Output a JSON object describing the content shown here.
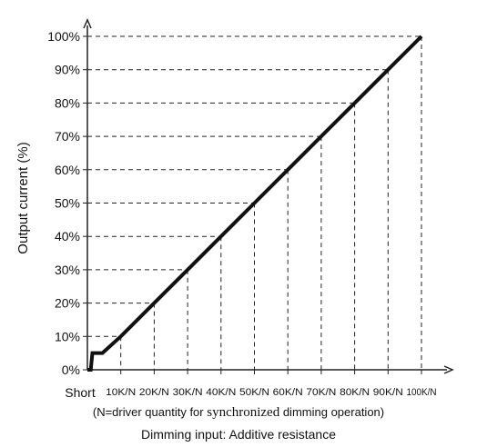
{
  "chart_data": {
    "type": "line",
    "ylabel": "Output current (%)",
    "xlabel": "Dimming input: Additive resistance",
    "note_before": "(N=driver quantity for ",
    "note_highlight": "synchronized",
    "note_after": " dimming operation)",
    "x_start_label": "Short",
    "categories": [
      "Short",
      "10K/N",
      "20K/N",
      "30K/N",
      "40K/N",
      "50K/N",
      "60K/N",
      "70K/N",
      "80K/N",
      "90K/N",
      "100K/N"
    ],
    "x_ticks": [
      10,
      20,
      30,
      40,
      50,
      60,
      70,
      80,
      90,
      100
    ],
    "x_tick_labels": [
      "10K/N",
      "20K/N",
      "30K/N",
      "40K/N",
      "50K/N",
      "60K/N",
      "70K/N",
      "80K/N",
      "90K/N",
      "100K/N"
    ],
    "y_ticks": [
      0,
      10,
      20,
      30,
      40,
      50,
      60,
      70,
      80,
      90,
      100
    ],
    "y_tick_labels": [
      "0%",
      "10%",
      "20%",
      "30%",
      "40%",
      "50%",
      "60%",
      "70%",
      "80%",
      "90%",
      "100%"
    ],
    "xlim": [
      0,
      106
    ],
    "ylim": [
      0,
      104
    ],
    "series": [
      {
        "x": [
          0,
          1,
          1.5,
          4.5,
          10,
          20,
          30,
          40,
          50,
          60,
          70,
          80,
          90,
          100
        ],
        "values": [
          0,
          0,
          5,
          5,
          10,
          20,
          30,
          40,
          50,
          60,
          70,
          80,
          90,
          100
        ]
      }
    ],
    "grid": "dashed guides",
    "colors": {
      "line": "#111111",
      "axis": "#222222",
      "guide": "#222222"
    }
  }
}
